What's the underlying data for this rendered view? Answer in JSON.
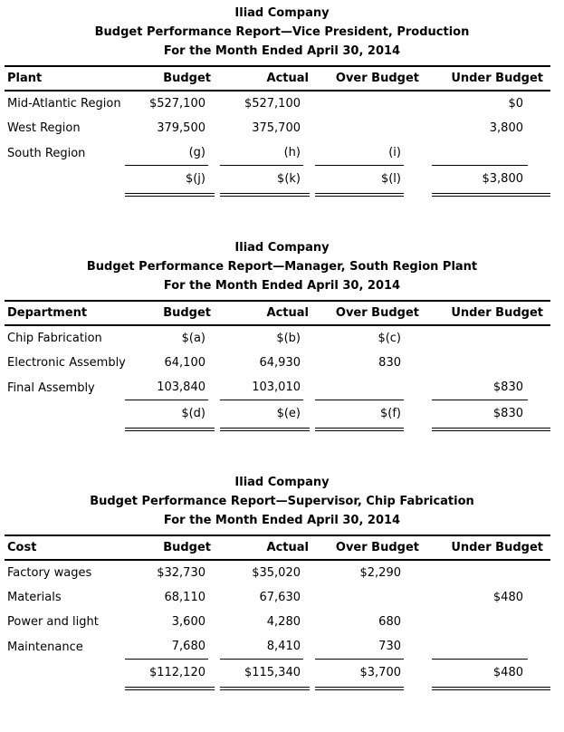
{
  "page": {
    "background_color": "#ffffff",
    "text_color": "#000000",
    "rule_color": "#000000"
  },
  "reports": [
    {
      "title": "Iliad Company",
      "subtitle": "Budget Performance Report—Vice President, Production",
      "period": "For the Month Ended April 30, 2014",
      "columns": [
        "Plant",
        "Budget",
        "Actual",
        "Over Budget",
        "Under Budget"
      ],
      "rows": [
        [
          "Mid-Atlantic Region",
          "$527,100",
          "$527,100",
          "",
          "$0"
        ],
        [
          "West Region",
          "379,500",
          "375,700",
          "",
          "3,800"
        ],
        [
          "South Region",
          "(g)",
          "(h)",
          "(i)",
          ""
        ]
      ],
      "total": [
        "",
        "$(j)",
        "$(k)",
        "$(l)",
        "$3,800"
      ]
    },
    {
      "title": "Iliad Company",
      "subtitle": "Budget Performance Report—Manager, South Region Plant",
      "period": "For the Month Ended April 30, 2014",
      "columns": [
        "Department",
        "Budget",
        "Actual",
        "Over Budget",
        "Under Budget"
      ],
      "rows": [
        [
          "Chip Fabrication",
          "$(a)",
          "$(b)",
          "$(c)",
          ""
        ],
        [
          "Electronic Assembly",
          "64,100",
          "64,930",
          "830",
          ""
        ],
        [
          "Final Assembly",
          "103,840",
          "103,010",
          "",
          "$830"
        ]
      ],
      "total": [
        "",
        "$(d)",
        "$(e)",
        "$(f)",
        "$830"
      ]
    },
    {
      "title": "Iliad Company",
      "subtitle": "Budget Performance Report—Supervisor, Chip Fabrication",
      "period": "For the Month Ended April 30, 2014",
      "columns": [
        "Cost",
        "Budget",
        "Actual",
        "Over Budget",
        "Under Budget"
      ],
      "rows": [
        [
          "Factory wages",
          "$32,730",
          "$35,020",
          "$2,290",
          ""
        ],
        [
          "Materials",
          "68,110",
          "67,630",
          "",
          "$480"
        ],
        [
          "Power and light",
          "3,600",
          "4,280",
          "680",
          ""
        ],
        [
          "Maintenance",
          "7,680",
          "8,410",
          "730",
          ""
        ]
      ],
      "total": [
        "",
        "$112,120",
        "$115,340",
        "$3,700",
        "$480"
      ]
    }
  ]
}
